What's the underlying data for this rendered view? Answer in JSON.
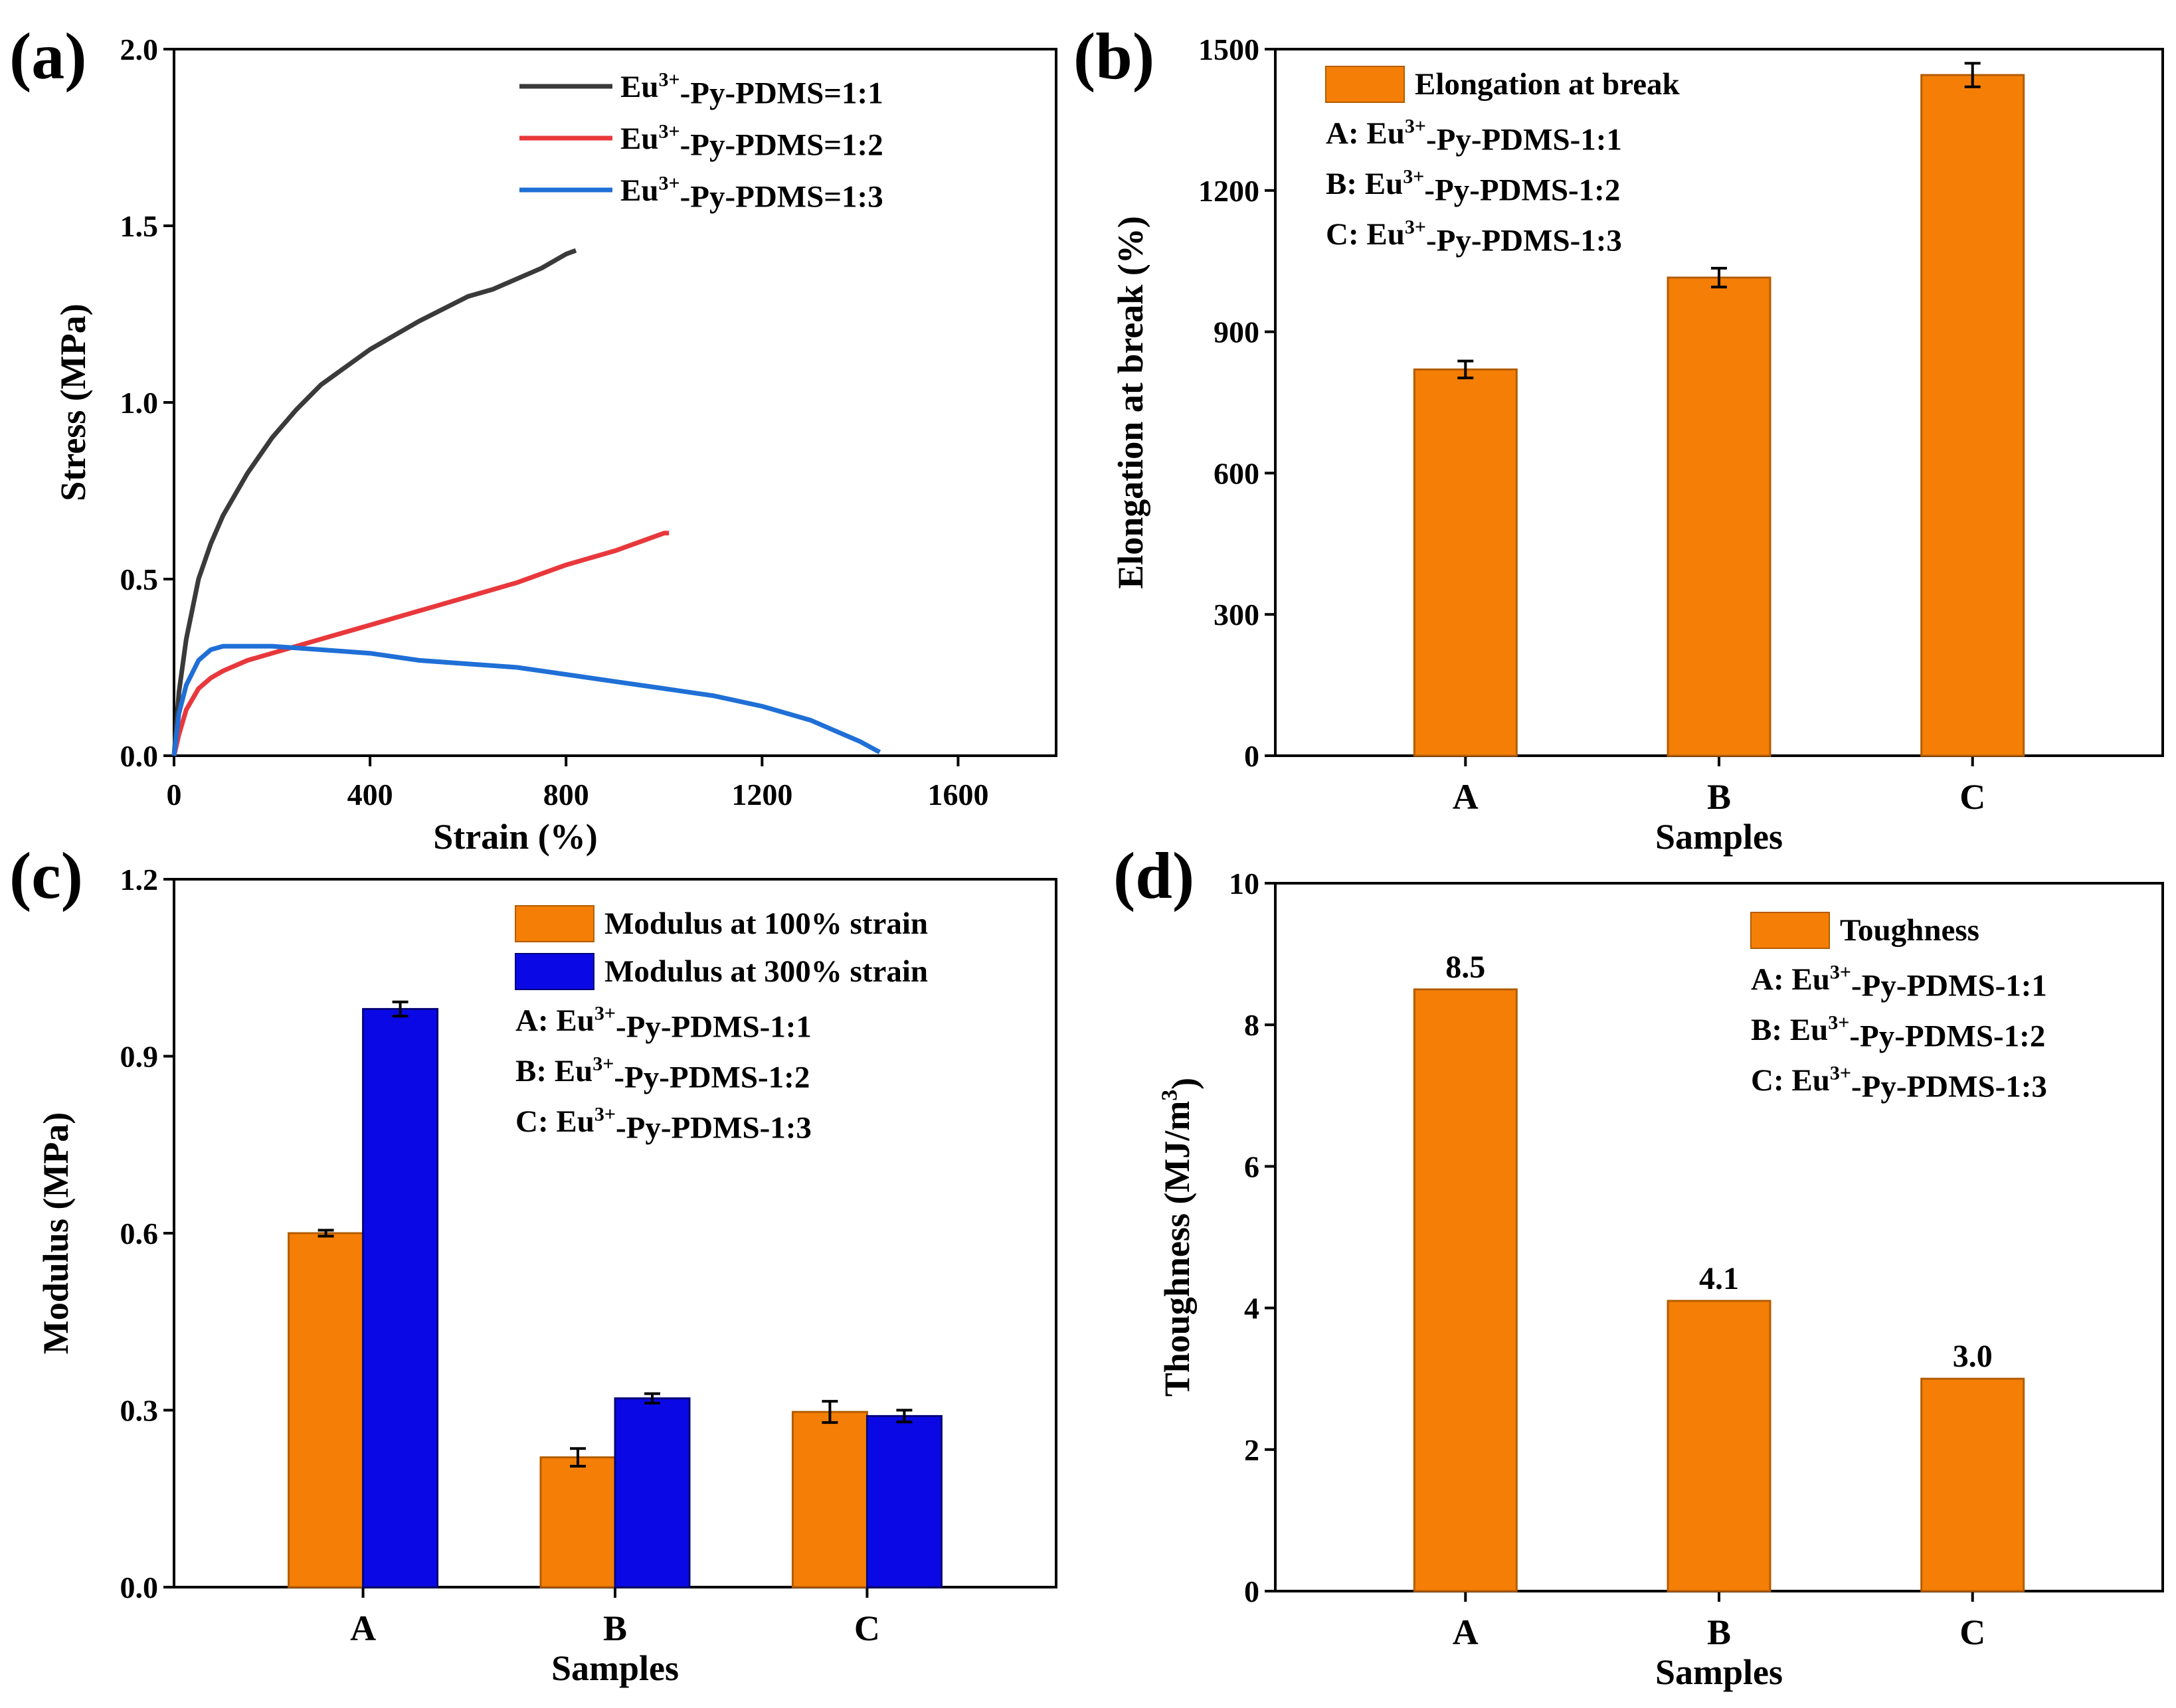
{
  "figure": {
    "description_free": true,
    "colors": {
      "orange": "#f57f06",
      "orange_dark": "#b35c00",
      "blue": "#0a09e6",
      "black_curve": "#3a3a3a",
      "red_curve": "#e8383c",
      "blue_curve": "#1f6fd6"
    }
  },
  "chart_data": [
    {
      "panel": "(a)",
      "type": "line",
      "xlabel": "Strain (%)",
      "ylabel": "Stress (MPa)",
      "xlim": [
        0,
        1800
      ],
      "ylim": [
        0,
        2.0
      ],
      "xticks": [
        "0",
        "400",
        "800",
        "1200",
        "1600"
      ],
      "xtick_values": [
        0,
        400,
        800,
        1200,
        1600
      ],
      "yticks": [
        "0.0",
        "0.5",
        "1.0",
        "1.5",
        "2.0"
      ],
      "ytick_values": [
        0,
        0.5,
        1.0,
        1.5,
        2.0
      ],
      "series": [
        {
          "name": "Eu3+-Py-PDMS=1:1",
          "legend": {
            "pre": "Eu",
            "sup": "3+",
            "post": "-Py-PDMS=1:1"
          },
          "color": "#3a3a3a",
          "x": [
            0,
            10,
            25,
            50,
            75,
            100,
            150,
            200,
            250,
            300,
            400,
            500,
            600,
            650,
            700,
            750,
            800,
            820
          ],
          "y": [
            0,
            0.18,
            0.33,
            0.5,
            0.6,
            0.68,
            0.8,
            0.9,
            0.98,
            1.05,
            1.15,
            1.23,
            1.3,
            1.32,
            1.35,
            1.38,
            1.42,
            1.43
          ]
        },
        {
          "name": "Eu3+-Py-PDMS=1:2",
          "legend": {
            "pre": "Eu",
            "sup": "3+",
            "post": "-Py-PDMS=1:2"
          },
          "color": "#e8383c",
          "x": [
            0,
            10,
            25,
            50,
            75,
            100,
            150,
            200,
            300,
            400,
            500,
            600,
            700,
            800,
            900,
            1000,
            1010
          ],
          "y": [
            0,
            0.06,
            0.13,
            0.19,
            0.22,
            0.24,
            0.27,
            0.29,
            0.33,
            0.37,
            0.41,
            0.45,
            0.49,
            0.54,
            0.58,
            0.63,
            0.63
          ]
        },
        {
          "name": "Eu3+-Py-PDMS=1:3",
          "legend": {
            "pre": "Eu",
            "sup": "3+",
            "post": "-Py-PDMS=1:3"
          },
          "color": "#1f6fd6",
          "x": [
            0,
            10,
            25,
            50,
            75,
            100,
            150,
            200,
            300,
            400,
            500,
            600,
            700,
            800,
            900,
            1000,
            1100,
            1200,
            1300,
            1350,
            1400,
            1440
          ],
          "y": [
            0,
            0.12,
            0.2,
            0.27,
            0.3,
            0.31,
            0.31,
            0.31,
            0.3,
            0.29,
            0.27,
            0.26,
            0.25,
            0.23,
            0.21,
            0.19,
            0.17,
            0.14,
            0.1,
            0.07,
            0.04,
            0.01
          ]
        }
      ]
    },
    {
      "panel": "(b)",
      "type": "bar",
      "xlabel": "Samples",
      "ylabel": "Elongation at break (%)",
      "categories": [
        "A",
        "B",
        "C"
      ],
      "ylim": [
        0,
        1500
      ],
      "yticks": [
        "0",
        "300",
        "600",
        "900",
        "1200",
        "1500"
      ],
      "ytick_values": [
        0,
        300,
        600,
        900,
        1200,
        1500
      ],
      "series": [
        {
          "name": "Elongation at break",
          "color": "#f57f06",
          "values": [
            820,
            1015,
            1445
          ],
          "errors": [
            18,
            20,
            25
          ]
        }
      ],
      "legend_notes": [
        {
          "pre": "A: Eu",
          "sup": "3+",
          "post": "-Py-PDMS-1:1"
        },
        {
          "pre": "B: Eu",
          "sup": "3+",
          "post": "-Py-PDMS-1:2"
        },
        {
          "pre": "C: Eu",
          "sup": "3+",
          "post": "-Py-PDMS-1:3"
        }
      ]
    },
    {
      "panel": "(c)",
      "type": "bar",
      "xlabel": "Samples",
      "ylabel": "Modulus (MPa)",
      "categories": [
        "A",
        "B",
        "C"
      ],
      "ylim": [
        0,
        1.2
      ],
      "yticks": [
        "0.0",
        "0.3",
        "0.6",
        "0.9",
        "1.2"
      ],
      "ytick_values": [
        0,
        0.3,
        0.6,
        0.9,
        1.2
      ],
      "series": [
        {
          "name": "Modulus at 100% strain",
          "color": "#f57f06",
          "values": [
            0.6,
            0.22,
            0.297
          ],
          "errors": [
            0.005,
            0.015,
            0.018
          ]
        },
        {
          "name": "Modulus at 300% strain",
          "color": "#0a09e6",
          "values": [
            0.98,
            0.32,
            0.29
          ],
          "errors": [
            0.012,
            0.008,
            0.01
          ]
        }
      ],
      "legend_notes": [
        {
          "pre": "A: Eu",
          "sup": "3+",
          "post": "-Py-PDMS-1:1"
        },
        {
          "pre": "B: Eu",
          "sup": "3+",
          "post": "-Py-PDMS-1:2"
        },
        {
          "pre": "C: Eu",
          "sup": "3+",
          "post": "-Py-PDMS-1:3"
        }
      ]
    },
    {
      "panel": "(d)",
      "type": "bar",
      "xlabel": "Samples",
      "ylabel": {
        "pre": "Thoughness (MJ/m",
        "sup": "3",
        "post": ")"
      },
      "categories": [
        "A",
        "B",
        "C"
      ],
      "ylim": [
        0,
        10
      ],
      "yticks": [
        "0",
        "2",
        "4",
        "6",
        "8",
        "10"
      ],
      "ytick_values": [
        0,
        2,
        4,
        6,
        8,
        10
      ],
      "series": [
        {
          "name": "Toughness",
          "color": "#f57f06",
          "values": [
            8.5,
            4.1,
            3.0
          ],
          "labels": [
            "8.5",
            "4.1",
            "3.0"
          ]
        }
      ],
      "legend_notes": [
        {
          "pre": "A: Eu",
          "sup": "3+",
          "post": "-Py-PDMS-1:1"
        },
        {
          "pre": "B: Eu",
          "sup": "3+",
          "post": "-Py-PDMS-1:2"
        },
        {
          "pre": "C: Eu",
          "sup": "3+",
          "post": "-Py-PDMS-1:3"
        }
      ]
    }
  ]
}
